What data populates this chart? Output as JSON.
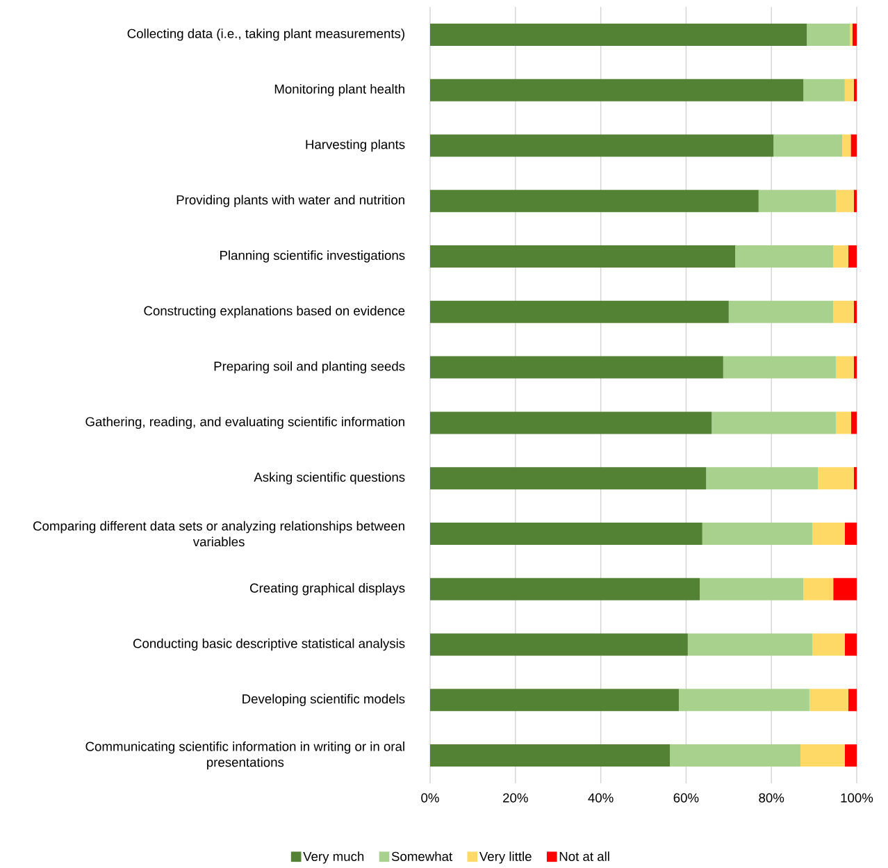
{
  "chart_data": {
    "type": "bar",
    "orientation": "horizontal",
    "stacked": true,
    "categories": [
      "Collecting data (i.e., taking plant measurements)",
      "Monitoring plant health",
      "Harvesting plants",
      "Providing plants with water and nutrition",
      "Planning scientific investigations",
      "Constructing explanations based on evidence",
      "Preparing soil and planting seeds",
      "Gathering, reading, and evaluating scientific information",
      "Asking scientific questions",
      "Comparing different data sets or analyzing relationships between variables",
      "Creating graphical displays",
      "Conducting basic descriptive statistical analysis",
      "Developing scientific models",
      "Communicating scientific information in writing or in oral presentations"
    ],
    "series": [
      {
        "name": "Very much",
        "color": "#548235",
        "values": [
          88.3,
          87.5,
          80.5,
          77.0,
          71.5,
          70.0,
          68.7,
          66.0,
          64.7,
          63.8,
          63.2,
          60.4,
          58.3,
          56.2
        ]
      },
      {
        "name": "Somewhat",
        "color": "#a9d18e",
        "values": [
          10.1,
          9.7,
          16.1,
          18.1,
          23.0,
          24.5,
          26.4,
          29.1,
          26.2,
          25.8,
          24.3,
          29.2,
          30.6,
          30.6
        ]
      },
      {
        "name": "Very little",
        "color": "#ffd966",
        "values": [
          0.6,
          2.1,
          2.0,
          4.2,
          3.5,
          4.8,
          4.2,
          3.6,
          8.4,
          7.6,
          7.0,
          7.6,
          9.1,
          10.4
        ]
      },
      {
        "name": "Not at all",
        "color": "#ff0000",
        "values": [
          1.0,
          0.7,
          1.4,
          0.7,
          2.0,
          0.7,
          0.7,
          1.3,
          0.7,
          2.8,
          5.5,
          2.8,
          2.0,
          2.8
        ]
      }
    ],
    "xlim": [
      0,
      100
    ],
    "xticks": [
      {
        "value": 0,
        "label": "0%"
      },
      {
        "value": 20,
        "label": "20%"
      },
      {
        "value": 40,
        "label": "40%"
      },
      {
        "value": 60,
        "label": "60%"
      },
      {
        "value": 80,
        "label": "80%"
      },
      {
        "value": 100,
        "label": "100%"
      }
    ],
    "grid": "x",
    "legend": "bottom"
  }
}
